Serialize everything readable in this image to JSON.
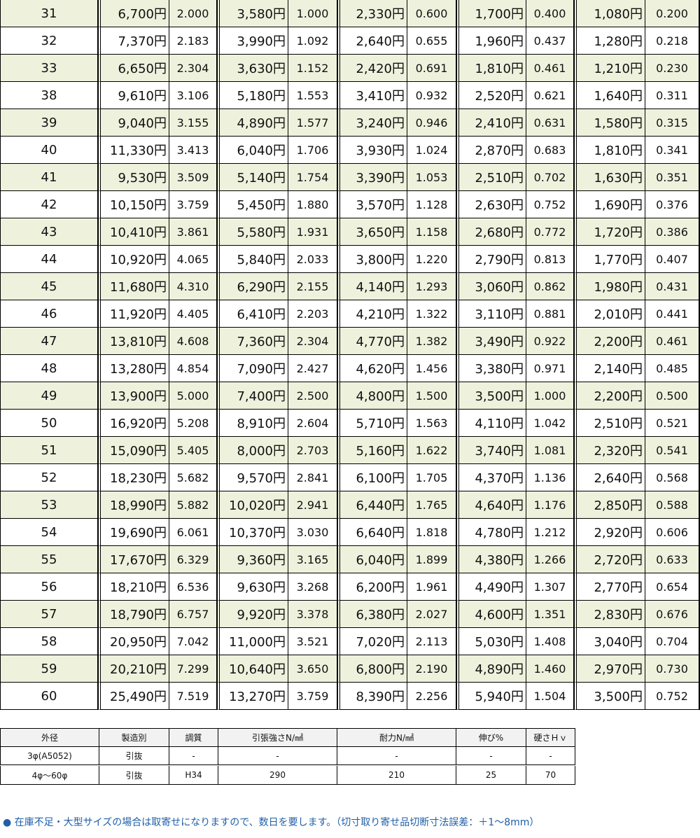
{
  "table": {
    "rows": [
      [
        "31",
        "6,700円",
        "2.000",
        "3,580円",
        "1.000",
        "2,330円",
        "0.600",
        "1,700円",
        "0.400",
        "1,080円",
        "0.200"
      ],
      [
        "32",
        "7,370円",
        "2.183",
        "3,990円",
        "1.092",
        "2,640円",
        "0.655",
        "1,960円",
        "0.437",
        "1,280円",
        "0.218"
      ],
      [
        "33",
        "6,650円",
        "2.304",
        "3,630円",
        "1.152",
        "2,420円",
        "0.691",
        "1,810円",
        "0.461",
        "1,210円",
        "0.230"
      ],
      [
        "38",
        "9,610円",
        "3.106",
        "5,180円",
        "1.553",
        "3,410円",
        "0.932",
        "2,520円",
        "0.621",
        "1,640円",
        "0.311"
      ],
      [
        "39",
        "9,040円",
        "3.155",
        "4,890円",
        "1.577",
        "3,240円",
        "0.946",
        "2,410円",
        "0.631",
        "1,580円",
        "0.315"
      ],
      [
        "40",
        "11,330円",
        "3.413",
        "6,040円",
        "1.706",
        "3,930円",
        "1.024",
        "2,870円",
        "0.683",
        "1,810円",
        "0.341"
      ],
      [
        "41",
        "9,530円",
        "3.509",
        "5,140円",
        "1.754",
        "3,390円",
        "1.053",
        "2,510円",
        "0.702",
        "1,630円",
        "0.351"
      ],
      [
        "42",
        "10,150円",
        "3.759",
        "5,450円",
        "1.880",
        "3,570円",
        "1.128",
        "2,630円",
        "0.752",
        "1,690円",
        "0.376"
      ],
      [
        "43",
        "10,410円",
        "3.861",
        "5,580円",
        "1.931",
        "3,650円",
        "1.158",
        "2,680円",
        "0.772",
        "1,720円",
        "0.386"
      ],
      [
        "44",
        "10,920円",
        "4.065",
        "5,840円",
        "2.033",
        "3,800円",
        "1.220",
        "2,790円",
        "0.813",
        "1,770円",
        "0.407"
      ],
      [
        "45",
        "11,680円",
        "4.310",
        "6,290円",
        "2.155",
        "4,140円",
        "1.293",
        "3,060円",
        "0.862",
        "1,980円",
        "0.431"
      ],
      [
        "46",
        "11,920円",
        "4.405",
        "6,410円",
        "2.203",
        "4,210円",
        "1.322",
        "3,110円",
        "0.881",
        "2,010円",
        "0.441"
      ],
      [
        "47",
        "13,810円",
        "4.608",
        "7,360円",
        "2.304",
        "4,770円",
        "1.382",
        "3,490円",
        "0.922",
        "2,200円",
        "0.461"
      ],
      [
        "48",
        "13,280円",
        "4.854",
        "7,090円",
        "2.427",
        "4,620円",
        "1.456",
        "3,380円",
        "0.971",
        "2,140円",
        "0.485"
      ],
      [
        "49",
        "13,900円",
        "5.000",
        "7,400円",
        "2.500",
        "4,800円",
        "1.500",
        "3,500円",
        "1.000",
        "2,200円",
        "0.500"
      ],
      [
        "50",
        "16,920円",
        "5.208",
        "8,910円",
        "2.604",
        "5,710円",
        "1.563",
        "4,110円",
        "1.042",
        "2,510円",
        "0.521"
      ],
      [
        "51",
        "15,090円",
        "5.405",
        "8,000円",
        "2.703",
        "5,160円",
        "1.622",
        "3,740円",
        "1.081",
        "2,320円",
        "0.541"
      ],
      [
        "52",
        "18,230円",
        "5.682",
        "9,570円",
        "2.841",
        "6,100円",
        "1.705",
        "4,370円",
        "1.136",
        "2,640円",
        "0.568"
      ],
      [
        "53",
        "18,990円",
        "5.882",
        "10,020円",
        "2.941",
        "6,440円",
        "1.765",
        "4,640円",
        "1.176",
        "2,850円",
        "0.588"
      ],
      [
        "54",
        "19,690円",
        "6.061",
        "10,370円",
        "3.030",
        "6,640円",
        "1.818",
        "4,780円",
        "1.212",
        "2,920円",
        "0.606"
      ],
      [
        "55",
        "17,670円",
        "6.329",
        "9,360円",
        "3.165",
        "6,040円",
        "1.899",
        "4,380円",
        "1.266",
        "2,720円",
        "0.633"
      ],
      [
        "56",
        "18,210円",
        "6.536",
        "9,630円",
        "3.268",
        "6,200円",
        "1.961",
        "4,490円",
        "1.307",
        "2,770円",
        "0.654"
      ],
      [
        "57",
        "18,790円",
        "6.757",
        "9,920円",
        "3.378",
        "6,380円",
        "2.027",
        "4,600円",
        "1.351",
        "2,830円",
        "0.676"
      ],
      [
        "58",
        "20,950円",
        "7.042",
        "11,000円",
        "3.521",
        "7,020円",
        "2.113",
        "5,030円",
        "1.408",
        "3,040円",
        "0.704"
      ],
      [
        "59",
        "20,210円",
        "7.299",
        "10,640円",
        "3.650",
        "6,800円",
        "2.190",
        "4,890円",
        "1.460",
        "2,970円",
        "0.730"
      ],
      [
        "60",
        "25,490円",
        "7.519",
        "13,270円",
        "3.759",
        "8,390円",
        "2.256",
        "5,940円",
        "1.504",
        "3,500円",
        "0.752"
      ]
    ]
  },
  "spec": {
    "header": [
      "外径",
      "製造別",
      "調質",
      "引張強さN/㎟",
      "耐力N/㎟",
      "伸び%",
      "硬さＨｖ"
    ],
    "rows": [
      [
        "3φ(A5052)",
        "引抜",
        "-",
        "-",
        "-",
        "-",
        "-"
      ],
      [
        "4φ〜60φ",
        "引抜",
        "H34",
        "290",
        "210",
        "25",
        "70"
      ]
    ]
  },
  "note": "● 在庫不足・大型サイズの場合は取寄せになりますので、数日を要します。（切寸取り寄せ品切断寸法誤差：＋1〜8mm）"
}
